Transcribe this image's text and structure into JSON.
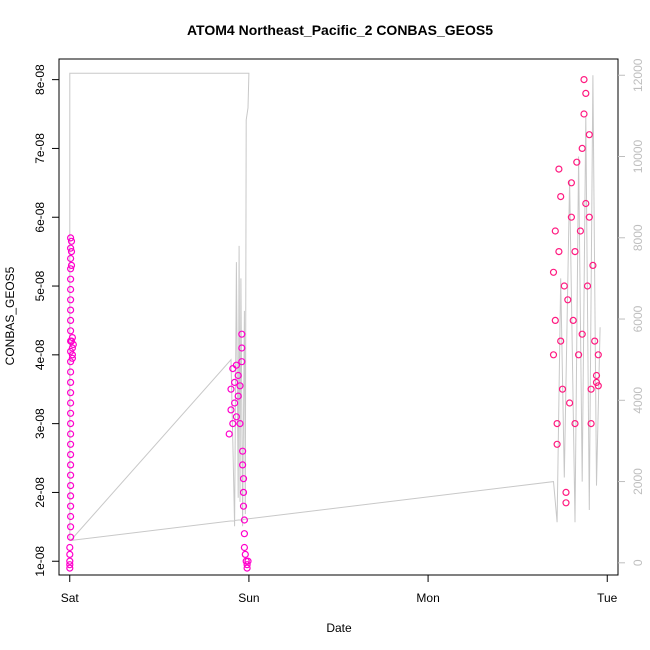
{
  "chart_data": {
    "type": "scatter",
    "title": "ATOM4 Northeast_Pacific_2 CONBAS_GEOS5",
    "xlabel": "Date",
    "ylabel": "CONBAS_GEOS5",
    "x_ticks": [
      "Sat",
      "Sun",
      "Mon",
      "Tue"
    ],
    "x_tick_values": [
      0,
      1,
      2,
      3
    ],
    "x_range": [
      -0.06,
      3.06
    ],
    "y_ticks": [
      "1e-08",
      "2e-08",
      "3e-08",
      "4e-08",
      "5e-08",
      "6e-08",
      "7e-08",
      "8e-08"
    ],
    "ylim": [
      8e-09,
      8.3e-08
    ],
    "y2_ticks": [
      "0",
      "2000",
      "4000",
      "6000",
      "8000",
      "10000",
      "12000"
    ],
    "y2lim": [
      -300,
      12400
    ],
    "grid": false,
    "colors": {
      "magenta": "#ff00cc",
      "pink": "#ff1a80",
      "line": "#c8c8c8"
    },
    "series": [
      {
        "axis": "left",
        "marker": "circle-open",
        "color": "#ff00cc",
        "points": [
          [
            0.0,
            9e-09
          ],
          [
            0.0,
            9.5e-09
          ],
          [
            0.0,
            1e-08
          ],
          [
            0.0,
            1.1e-08
          ],
          [
            0.0,
            1.2e-08
          ],
          [
            0.005,
            1.35e-08
          ],
          [
            0.005,
            1.5e-08
          ],
          [
            0.005,
            1.65e-08
          ],
          [
            0.005,
            1.8e-08
          ],
          [
            0.005,
            1.95e-08
          ],
          [
            0.005,
            2.1e-08
          ],
          [
            0.005,
            2.25e-08
          ],
          [
            0.005,
            2.4e-08
          ],
          [
            0.005,
            2.55e-08
          ],
          [
            0.005,
            2.7e-08
          ],
          [
            0.005,
            2.85e-08
          ],
          [
            0.005,
            3e-08
          ],
          [
            0.005,
            3.15e-08
          ],
          [
            0.005,
            3.3e-08
          ],
          [
            0.005,
            3.45e-08
          ],
          [
            0.005,
            3.6e-08
          ],
          [
            0.005,
            3.75e-08
          ],
          [
            0.005,
            3.9e-08
          ],
          [
            0.005,
            4.05e-08
          ],
          [
            0.005,
            4.2e-08
          ],
          [
            0.005,
            4.35e-08
          ],
          [
            0.005,
            4.5e-08
          ],
          [
            0.005,
            4.65e-08
          ],
          [
            0.005,
            4.8e-08
          ],
          [
            0.005,
            4.95e-08
          ],
          [
            0.005,
            5.1e-08
          ],
          [
            0.005,
            5.25e-08
          ],
          [
            0.005,
            5.4e-08
          ],
          [
            0.005,
            5.55e-08
          ],
          [
            0.005,
            5.7e-08
          ],
          [
            0.01,
            5.65e-08
          ],
          [
            0.01,
            5.5e-08
          ],
          [
            0.01,
            5.3e-08
          ],
          [
            0.01,
            4.2e-08
          ],
          [
            0.015,
            4.1e-08
          ],
          [
            0.015,
            4e-08
          ],
          [
            0.015,
            3.95e-08
          ],
          [
            0.015,
            4.25e-08
          ],
          [
            0.02,
            4.15e-08
          ],
          [
            0.89,
            2.85e-08
          ],
          [
            0.9,
            3.2e-08
          ],
          [
            0.9,
            3.5e-08
          ],
          [
            0.91,
            3.8e-08
          ],
          [
            0.91,
            3e-08
          ],
          [
            0.92,
            3.6e-08
          ],
          [
            0.92,
            3.3e-08
          ],
          [
            0.93,
            3.85e-08
          ],
          [
            0.93,
            3.1e-08
          ],
          [
            0.94,
            3.7e-08
          ],
          [
            0.94,
            3.4e-08
          ],
          [
            0.95,
            3.55e-08
          ],
          [
            0.95,
            3e-08
          ],
          [
            0.96,
            4.3e-08
          ],
          [
            0.96,
            4.1e-08
          ],
          [
            0.96,
            3.9e-08
          ],
          [
            0.965,
            2.6e-08
          ],
          [
            0.965,
            2.4e-08
          ],
          [
            0.97,
            2.2e-08
          ],
          [
            0.97,
            2e-08
          ],
          [
            0.97,
            1.8e-08
          ],
          [
            0.975,
            1.6e-08
          ],
          [
            0.975,
            1.4e-08
          ],
          [
            0.975,
            1.2e-08
          ],
          [
            0.98,
            1.1e-08
          ],
          [
            0.985,
            1e-08
          ],
          [
            0.99,
            9.5e-09
          ],
          [
            0.99,
            9e-09
          ],
          [
            0.995,
            1e-08
          ]
        ]
      },
      {
        "axis": "left",
        "marker": "circle-open",
        "color": "#ff1a80",
        "points": [
          [
            2.7,
            4e-08
          ],
          [
            2.7,
            5.2e-08
          ],
          [
            2.71,
            5.8e-08
          ],
          [
            2.71,
            4.5e-08
          ],
          [
            2.72,
            3e-08
          ],
          [
            2.72,
            2.7e-08
          ],
          [
            2.73,
            6.7e-08
          ],
          [
            2.73,
            5.5e-08
          ],
          [
            2.74,
            6.3e-08
          ],
          [
            2.74,
            4.2e-08
          ],
          [
            2.75,
            3.5e-08
          ],
          [
            2.76,
            5e-08
          ],
          [
            2.77,
            2e-08
          ],
          [
            2.77,
            1.85e-08
          ],
          [
            2.78,
            4.8e-08
          ],
          [
            2.79,
            3.3e-08
          ],
          [
            2.8,
            6e-08
          ],
          [
            2.8,
            6.5e-08
          ],
          [
            2.81,
            4.5e-08
          ],
          [
            2.82,
            5.5e-08
          ],
          [
            2.82,
            3e-08
          ],
          [
            2.83,
            6.8e-08
          ],
          [
            2.84,
            4e-08
          ],
          [
            2.85,
            5.8e-08
          ],
          [
            2.86,
            7e-08
          ],
          [
            2.86,
            4.3e-08
          ],
          [
            2.87,
            7.5e-08
          ],
          [
            2.87,
            8e-08
          ],
          [
            2.88,
            7.8e-08
          ],
          [
            2.88,
            6.2e-08
          ],
          [
            2.89,
            5e-08
          ],
          [
            2.9,
            7.2e-08
          ],
          [
            2.9,
            6e-08
          ],
          [
            2.91,
            3e-08
          ],
          [
            2.91,
            3.5e-08
          ],
          [
            2.92,
            5.3e-08
          ],
          [
            2.93,
            4.2e-08
          ],
          [
            2.94,
            3.7e-08
          ],
          [
            2.94,
            3.6e-08
          ],
          [
            2.95,
            4e-08
          ],
          [
            2.95,
            3.55e-08
          ]
        ]
      },
      {
        "axis": "right",
        "type": "line",
        "color": "#c8c8c8",
        "points": [
          [
            0.0,
            550
          ],
          [
            0.0,
            12050
          ],
          [
            1.0,
            12050
          ],
          [
            0.995,
            11200
          ],
          [
            0.985,
            10900
          ],
          [
            0.98,
            1200
          ],
          [
            0.975,
            6200
          ],
          [
            0.965,
            900
          ],
          [
            0.955,
            7000
          ],
          [
            0.95,
            1500
          ],
          [
            0.945,
            7800
          ],
          [
            0.94,
            1600
          ],
          [
            0.93,
            7400
          ],
          [
            0.92,
            900
          ],
          [
            0.91,
            3000
          ],
          [
            0.9,
            5000
          ],
          [
            0.005,
            550
          ],
          [
            2.7,
            2000
          ],
          [
            2.72,
            1000
          ],
          [
            2.74,
            7000
          ],
          [
            2.76,
            2100
          ],
          [
            2.79,
            9400
          ],
          [
            2.82,
            1000
          ],
          [
            2.84,
            10000
          ],
          [
            2.86,
            2000
          ],
          [
            2.88,
            11000
          ],
          [
            2.9,
            1300
          ],
          [
            2.92,
            12000
          ],
          [
            2.94,
            1900
          ],
          [
            2.96,
            5800
          ]
        ]
      }
    ]
  }
}
